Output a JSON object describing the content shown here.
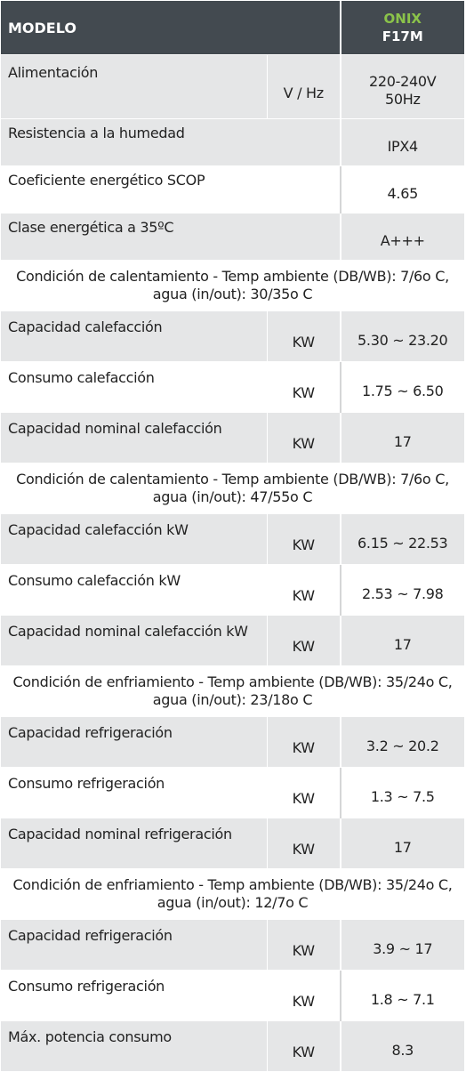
{
  "header": {
    "label": "MODELO",
    "brand": "ONIX",
    "model": "F17M"
  },
  "rows": {
    "alimentacion": {
      "name": "Alimentación",
      "unit": "V / Hz",
      "value_line1": "220-240V",
      "value_line2": "50Hz"
    },
    "humedad": {
      "name": "Resistencia a la humedad",
      "value": "IPX4"
    },
    "scop": {
      "name": "Coeficiente energético SCOP",
      "value": "4.65"
    },
    "clase": {
      "name": "Clase energética a 35ºC",
      "value": "A+++"
    },
    "cond1": "Condición de calentamiento - Temp ambiente (DB/WB): 7/6o C, agua (in/out): 30/35o C",
    "r1": {
      "name": "Capacidad calefacción",
      "unit": "KW",
      "value": "5.30 ~ 23.20"
    },
    "r2": {
      "name": "Consumo calefacción",
      "unit": "KW",
      "value": "1.75 ~ 6.50"
    },
    "r3": {
      "name": "Capacidad nominal calefacción",
      "unit": "KW",
      "value": "17"
    },
    "cond2": "Condición de calentamiento - Temp ambiente (DB/WB): 7/6o C, agua (in/out): 47/55o C",
    "r4": {
      "name": "Capacidad calefacción kW",
      "unit": "KW",
      "value": "6.15 ~ 22.53"
    },
    "r5": {
      "name": "Consumo calefacción kW",
      "unit": "KW",
      "value": "2.53 ~ 7.98"
    },
    "r6": {
      "name": "Capacidad nominal calefacción kW",
      "unit": "KW",
      "value": "17"
    },
    "cond3": "Condición de enfriamiento - Temp ambiente (DB/WB): 35/24o C, agua (in/out): 23/18o C",
    "r7": {
      "name": "Capacidad refrigeración",
      "unit": "KW",
      "value": "3.2 ~ 20.2"
    },
    "r8": {
      "name": "Consumo refrigeración",
      "unit": "KW",
      "value": "1.3 ~ 7.5"
    },
    "r9": {
      "name": "Capacidad nominal refrigeración",
      "unit": "KW",
      "value": "17"
    },
    "cond4": "Condición de enfriamiento - Temp ambiente (DB/WB): 35/24o C, agua (in/out): 12/7o C",
    "r10": {
      "name": "Capacidad refrigeración",
      "unit": "KW",
      "value": "3.9 ~ 17"
    },
    "r11": {
      "name": "Consumo refrigeración",
      "unit": "KW",
      "value": "1.8 ~ 7.1"
    },
    "r12": {
      "name": "Máx. potencia consumo",
      "unit": "KW",
      "value": "8.3"
    }
  },
  "colors": {
    "header_bg": "#434a50",
    "brand": "#8bc34a",
    "row_gray": "#e5e6e7"
  }
}
